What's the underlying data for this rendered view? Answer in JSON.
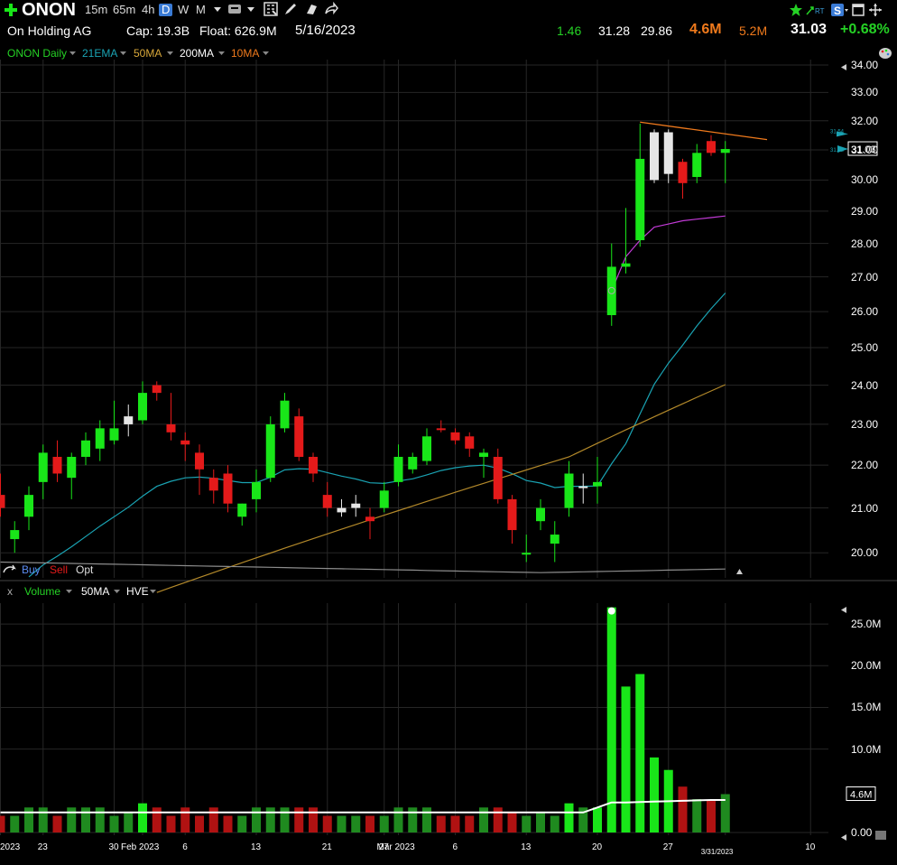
{
  "toolbar": {
    "ticker": "ONON",
    "timeframes": [
      "15m",
      "65m",
      "4h",
      "D",
      "W",
      "M"
    ],
    "active_timeframe": "D",
    "right_badges": {
      "rt": "RT",
      "s": "S"
    }
  },
  "info": {
    "company": "On Holding AG",
    "cap": "Cap: 19.3B",
    "float": "Float: 626.9M",
    "date": "5/16/2023",
    "atr": "1.46",
    "high": "31.28",
    "low": "29.86",
    "volume": "4.6M",
    "avg_volume": "5.2M",
    "last": "31.03",
    "change": "+0.68%"
  },
  "legend": {
    "symbol": "ONON Daily",
    "ema21": "21EMA",
    "ma50": "50MA",
    "ma200": "200MA",
    "ma10": "10MA"
  },
  "colors": {
    "up": "#19e619",
    "down": "#e41a1a",
    "neutral": "#e6e6e6",
    "ema21": "#1aa3b3",
    "ma50": "#b3892a",
    "ma200": "#8c8c8c",
    "ma10": "#c23ad6",
    "trendline": "#f07a1c",
    "grid": "#262626"
  },
  "trade_buttons": {
    "buy": "Buy",
    "sell": "Sell",
    "opt": "Opt"
  },
  "volume_legend": {
    "close": "x",
    "volume": "Volume",
    "ma": "50MA",
    "hve": "HVE"
  },
  "chart_data": [
    {
      "type": "candlestick",
      "title": "ONON Daily",
      "y_ticks": [
        "34.00",
        "33.00",
        "32.00",
        "31.00",
        "30.00",
        "29.00",
        "28.00",
        "27.00",
        "26.00",
        "25.00",
        "24.00",
        "23.00",
        "22.00",
        "21.00",
        "20.00"
      ],
      "ylim": [
        19.5,
        34.2
      ],
      "price_tag": "31.03",
      "small_tags": [
        "31.54",
        "31.18"
      ],
      "x_tick_labels": [
        {
          "label": "2023",
          "i": 0
        },
        {
          "label": "23",
          "i": 3
        },
        {
          "label": "30",
          "i": 8
        },
        {
          "label": "Feb 2023",
          "i": 10
        },
        {
          "label": "6",
          "i": 13
        },
        {
          "label": "13",
          "i": 18
        },
        {
          "label": "21",
          "i": 23
        },
        {
          "label": "27",
          "i": 27
        },
        {
          "label": "Mar 2023",
          "i": 28
        },
        {
          "label": "6",
          "i": 32
        },
        {
          "label": "13",
          "i": 37
        },
        {
          "label": "20",
          "i": 42
        },
        {
          "label": "27",
          "i": 47
        },
        {
          "label": "3/31/2023",
          "i": 51
        },
        {
          "label": "10",
          "i": 57
        }
      ],
      "candles": [
        {
          "o": 21.3,
          "h": 21.8,
          "l": 20.8,
          "c": 21.0,
          "d": "down"
        },
        {
          "o": 20.3,
          "h": 20.7,
          "l": 20.0,
          "c": 20.5,
          "d": "up"
        },
        {
          "o": 20.8,
          "h": 21.5,
          "l": 20.5,
          "c": 21.3,
          "d": "up"
        },
        {
          "o": 21.6,
          "h": 22.5,
          "l": 21.2,
          "c": 22.3,
          "d": "up"
        },
        {
          "o": 22.2,
          "h": 22.6,
          "l": 21.6,
          "c": 21.8,
          "d": "down"
        },
        {
          "o": 21.7,
          "h": 22.3,
          "l": 21.2,
          "c": 22.2,
          "d": "up"
        },
        {
          "o": 22.2,
          "h": 22.8,
          "l": 22.0,
          "c": 22.6,
          "d": "up"
        },
        {
          "o": 22.4,
          "h": 23.1,
          "l": 22.1,
          "c": 22.9,
          "d": "up"
        },
        {
          "o": 22.6,
          "h": 23.6,
          "l": 22.5,
          "c": 22.9,
          "d": "up"
        },
        {
          "o": 23.0,
          "h": 23.5,
          "l": 22.7,
          "c": 23.2,
          "d": "neutral"
        },
        {
          "o": 23.1,
          "h": 24.1,
          "l": 23.0,
          "c": 23.8,
          "d": "up"
        },
        {
          "o": 24.0,
          "h": 24.1,
          "l": 23.6,
          "c": 23.8,
          "d": "down"
        },
        {
          "o": 23.0,
          "h": 23.8,
          "l": 22.6,
          "c": 22.8,
          "d": "down"
        },
        {
          "o": 22.6,
          "h": 22.8,
          "l": 22.1,
          "c": 22.5,
          "d": "down"
        },
        {
          "o": 22.3,
          "h": 22.5,
          "l": 21.3,
          "c": 21.9,
          "d": "down"
        },
        {
          "o": 21.7,
          "h": 21.9,
          "l": 21.1,
          "c": 21.4,
          "d": "down"
        },
        {
          "o": 21.8,
          "h": 22.0,
          "l": 20.9,
          "c": 21.1,
          "d": "down"
        },
        {
          "o": 20.8,
          "h": 21.1,
          "l": 20.6,
          "c": 21.1,
          "d": "up"
        },
        {
          "o": 21.2,
          "h": 21.9,
          "l": 20.9,
          "c": 21.6,
          "d": "up"
        },
        {
          "o": 21.7,
          "h": 23.2,
          "l": 21.6,
          "c": 23.0,
          "d": "up"
        },
        {
          "o": 22.9,
          "h": 23.8,
          "l": 22.8,
          "c": 23.6,
          "d": "up"
        },
        {
          "o": 23.2,
          "h": 23.4,
          "l": 22.1,
          "c": 22.2,
          "d": "down"
        },
        {
          "o": 22.2,
          "h": 22.3,
          "l": 21.6,
          "c": 21.8,
          "d": "down"
        },
        {
          "o": 21.3,
          "h": 21.6,
          "l": 20.8,
          "c": 21.0,
          "d": "down"
        },
        {
          "o": 21.0,
          "h": 21.2,
          "l": 20.8,
          "c": 20.9,
          "d": "neutral"
        },
        {
          "o": 21.1,
          "h": 21.3,
          "l": 20.8,
          "c": 21.0,
          "d": "neutral"
        },
        {
          "o": 20.8,
          "h": 21.0,
          "l": 20.3,
          "c": 20.7,
          "d": "down"
        },
        {
          "o": 21.0,
          "h": 21.6,
          "l": 20.9,
          "c": 21.4,
          "d": "up"
        },
        {
          "o": 21.6,
          "h": 22.5,
          "l": 21.5,
          "c": 22.2,
          "d": "up"
        },
        {
          "o": 21.9,
          "h": 22.3,
          "l": 21.8,
          "c": 22.2,
          "d": "up"
        },
        {
          "o": 22.1,
          "h": 22.9,
          "l": 22.0,
          "c": 22.7,
          "d": "up"
        },
        {
          "o": 22.9,
          "h": 23.1,
          "l": 22.8,
          "c": 22.9,
          "d": "down"
        },
        {
          "o": 22.8,
          "h": 22.9,
          "l": 22.5,
          "c": 22.6,
          "d": "down"
        },
        {
          "o": 22.7,
          "h": 22.8,
          "l": 22.2,
          "c": 22.4,
          "d": "down"
        },
        {
          "o": 22.3,
          "h": 22.4,
          "l": 21.7,
          "c": 22.2,
          "d": "up"
        },
        {
          "o": 22.2,
          "h": 22.4,
          "l": 21.1,
          "c": 21.2,
          "d": "down"
        },
        {
          "o": 21.2,
          "h": 21.3,
          "l": 20.2,
          "c": 20.5,
          "d": "down"
        },
        {
          "o": 20.0,
          "h": 20.4,
          "l": 19.8,
          "c": 20.0,
          "d": "up"
        },
        {
          "o": 20.7,
          "h": 21.2,
          "l": 20.5,
          "c": 21.0,
          "d": "up"
        },
        {
          "o": 20.2,
          "h": 20.7,
          "l": 19.8,
          "c": 20.4,
          "d": "up"
        },
        {
          "o": 21.0,
          "h": 22.1,
          "l": 20.8,
          "c": 21.8,
          "d": "up"
        },
        {
          "o": 21.5,
          "h": 21.8,
          "l": 21.1,
          "c": 21.5,
          "d": "neutral"
        },
        {
          "o": 21.5,
          "h": 22.2,
          "l": 21.1,
          "c": 21.6,
          "d": "up"
        },
        {
          "o": 25.9,
          "h": 28.0,
          "l": 25.6,
          "c": 27.3,
          "d": "up"
        },
        {
          "o": 27.3,
          "h": 29.1,
          "l": 27.1,
          "c": 27.4,
          "d": "up"
        },
        {
          "o": 28.1,
          "h": 31.9,
          "l": 27.9,
          "c": 30.7,
          "d": "up"
        },
        {
          "o": 30.0,
          "h": 31.7,
          "l": 29.9,
          "c": 31.6,
          "d": "neutral"
        },
        {
          "o": 31.6,
          "h": 31.7,
          "l": 29.9,
          "c": 30.2,
          "d": "neutral"
        },
        {
          "o": 30.6,
          "h": 30.7,
          "l": 29.4,
          "c": 29.9,
          "d": "down"
        },
        {
          "o": 30.1,
          "h": 31.2,
          "l": 29.9,
          "c": 30.9,
          "d": "up"
        },
        {
          "o": 31.3,
          "h": 31.5,
          "l": 30.8,
          "c": 30.9,
          "d": "down"
        },
        {
          "o": 30.9,
          "h": 31.3,
          "l": 29.9,
          "c": 31.03,
          "d": "up"
        }
      ]
    },
    {
      "type": "bar",
      "title": "Volume",
      "y_ticks": [
        "25.0M",
        "20.0M",
        "15.0M",
        "10.0M",
        "0.00"
      ],
      "ylim": [
        0,
        27.5
      ],
      "value_tag": "4.6M",
      "values": [
        2.0,
        2.0,
        3.0,
        3.0,
        2.0,
        3.0,
        3.0,
        3.0,
        2.0,
        2.5,
        3.5,
        3.0,
        2.0,
        3.0,
        2.0,
        3.0,
        2.0,
        2.0,
        3.0,
        3.0,
        3.0,
        3.0,
        3.0,
        2.0,
        2.0,
        2.0,
        2.0,
        2.0,
        3.0,
        3.0,
        3.0,
        2.0,
        2.0,
        2.0,
        3.0,
        3.0,
        2.5,
        2.0,
        2.5,
        2.0,
        3.5,
        3.0,
        3.0,
        27.0,
        17.5,
        19.0,
        9.0,
        7.5,
        5.5,
        4.0,
        3.8,
        4.6
      ]
    }
  ]
}
